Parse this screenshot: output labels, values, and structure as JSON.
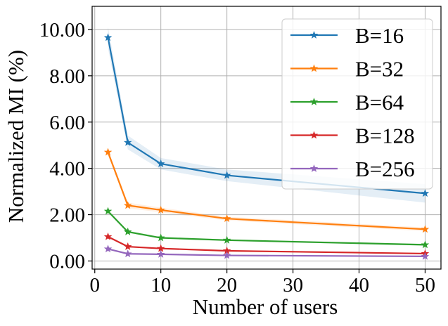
{
  "chart_data": {
    "type": "line",
    "title": "",
    "xlabel": "Number of users",
    "ylabel": "Normalized MI (%)",
    "x": [
      2,
      5,
      10,
      20,
      50
    ],
    "xlim": [
      -0.4,
      52.4
    ],
    "ylim": [
      -0.35,
      11.0
    ],
    "xticks": [
      0,
      10,
      20,
      30,
      40,
      50
    ],
    "xtick_labels": [
      "0",
      "10",
      "20",
      "30",
      "40",
      "50"
    ],
    "yticks": [
      0,
      2,
      4,
      6,
      8,
      10
    ],
    "ytick_labels": [
      "0.00",
      "2.00",
      "4.00",
      "6.00",
      "8.00",
      "10.00"
    ],
    "grid": true,
    "legend_position": "top-right",
    "marker": "star",
    "series": [
      {
        "name": "B=16",
        "color": "#1f77b4",
        "values": [
          9.65,
          5.12,
          4.2,
          3.7,
          2.92
        ],
        "band": [
          0.45,
          0.3,
          0.25,
          0.25,
          0.4
        ]
      },
      {
        "name": "B=32",
        "color": "#ff7f0e",
        "values": [
          4.7,
          2.4,
          2.2,
          1.83,
          1.37
        ],
        "band": [
          0.12,
          0.12,
          0.1,
          0.08,
          0.08
        ]
      },
      {
        "name": "B=64",
        "color": "#2ca02c",
        "values": [
          2.15,
          1.26,
          1.0,
          0.9,
          0.7
        ],
        "band": [
          0.05,
          0.05,
          0.04,
          0.04,
          0.04
        ]
      },
      {
        "name": "B=128",
        "color": "#d62728",
        "values": [
          1.05,
          0.62,
          0.54,
          0.44,
          0.32
        ],
        "band": [
          0.03,
          0.03,
          0.03,
          0.03,
          0.03
        ]
      },
      {
        "name": "B=256",
        "color": "#9467bd",
        "values": [
          0.52,
          0.31,
          0.29,
          0.24,
          0.2
        ],
        "band": [
          0.02,
          0.02,
          0.02,
          0.02,
          0.02
        ]
      }
    ]
  }
}
